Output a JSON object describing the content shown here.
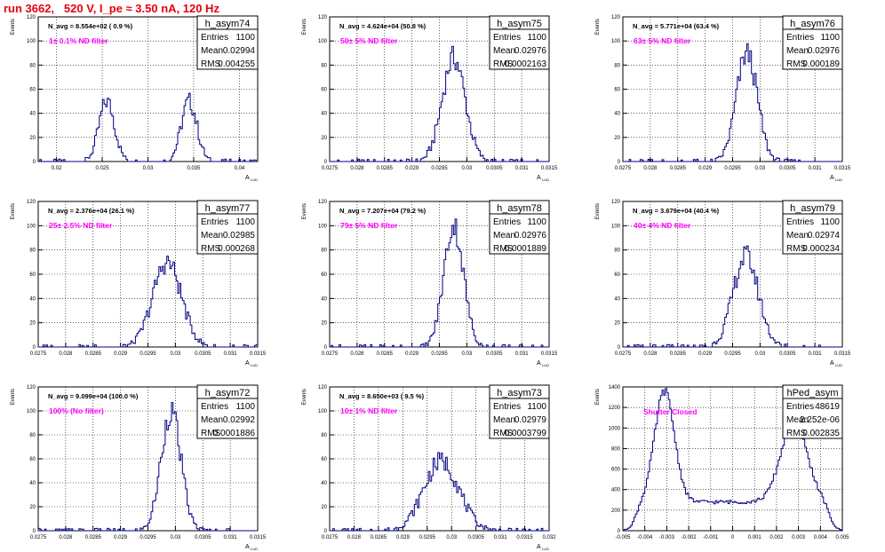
{
  "header": {
    "title": "run 3662,   520 V, I_pe ≈ 3.50 nA, 120 Hz",
    "title_color": "#e8000b"
  },
  "colors": {
    "histogram_line": "#000080",
    "filter_label": "#ff00ff",
    "grid": "#000000"
  },
  "chart_data": [
    {
      "type": "histogram",
      "name": "h_asym74",
      "navg": "N_avg = 8.554e+02 ( 0.9 %)",
      "filter": "1± 0.1% ND filter",
      "stats": {
        "Entries": "1100",
        "Mean": "0.02994",
        "RMS": "0.004255"
      },
      "ylabel": "Events",
      "xlabel": "A",
      "xlim": [
        0.018,
        0.042
      ],
      "ylim": [
        0,
        120
      ],
      "xticks": [
        "0.02",
        "0.025",
        "0.03",
        "0.035",
        "0.04"
      ],
      "xtick_values": [
        0.02,
        0.025,
        0.03,
        0.035,
        0.04
      ],
      "yticks": [
        0,
        20,
        40,
        60,
        80,
        100,
        120
      ],
      "peaks": [
        [
          0.0255,
          0.00085,
          50
        ],
        [
          0.0345,
          0.00085,
          50
        ]
      ]
    },
    {
      "type": "histogram",
      "name": "h_asym75",
      "navg": "N_avg = 4.624e+04 (50.8 %)",
      "filter": "50± 5% ND filter",
      "stats": {
        "Entries": "1100",
        "Mean": "0.02976",
        "RMS": "0.0002163"
      },
      "ylabel": "Events",
      "xlabel": "A",
      "xlim": [
        0.0275,
        0.0315
      ],
      "ylim": [
        0,
        120
      ],
      "xticks": [
        "0.0275",
        "0.028",
        "0.0285",
        "0.029",
        "0.0295",
        "0.03",
        "0.0305",
        "0.031",
        "0.0315"
      ],
      "xtick_values": [
        0.0275,
        0.028,
        0.0285,
        0.029,
        0.0295,
        0.03,
        0.0305,
        0.031,
        0.0315
      ],
      "yticks": [
        0,
        20,
        40,
        60,
        80,
        100,
        120
      ],
      "peaks": [
        [
          0.02976,
          0.00021,
          86
        ]
      ]
    },
    {
      "type": "histogram",
      "name": "h_asym76",
      "navg": "N_avg = 5.771e+04 (63.4 %)",
      "filter": "63± 5% ND filter",
      "stats": {
        "Entries": "1100",
        "Mean": "0.02976",
        "RMS": "0.000189"
      },
      "ylabel": "Events",
      "xlabel": "A",
      "xlim": [
        0.0275,
        0.0315
      ],
      "ylim": [
        0,
        120
      ],
      "xticks": [
        "0.0275",
        "0.028",
        "0.0285",
        "0.029",
        "0.0295",
        "0.03",
        "0.0305",
        "0.031",
        "0.0315"
      ],
      "xtick_values": [
        0.0275,
        0.028,
        0.0285,
        0.029,
        0.0295,
        0.03,
        0.0305,
        0.031,
        0.0315
      ],
      "yticks": [
        0,
        20,
        40,
        60,
        80,
        100,
        120
      ],
      "peaks": [
        [
          0.02976,
          0.00019,
          90
        ]
      ]
    },
    {
      "type": "histogram",
      "name": "h_asym77",
      "navg": "N_avg = 2.376e+04 (26.1 %)",
      "filter": "25± 2.5% ND filter",
      "stats": {
        "Entries": "1100",
        "Mean": "0.02985",
        "RMS": "0.000268"
      },
      "ylabel": "Events",
      "xlabel": "A",
      "xlim": [
        0.0275,
        0.0315
      ],
      "ylim": [
        0,
        120
      ],
      "xticks": [
        "0.0275",
        "0.028",
        "0.0285",
        "0.029",
        "0.0295",
        "0.03",
        "0.0305",
        "0.031",
        "0.0315"
      ],
      "xtick_values": [
        0.0275,
        0.028,
        0.0285,
        0.029,
        0.0295,
        0.03,
        0.0305,
        0.031,
        0.0315
      ],
      "yticks": [
        0,
        20,
        40,
        60,
        80,
        100,
        120
      ],
      "peaks": [
        [
          0.02985,
          0.00026,
          70
        ]
      ]
    },
    {
      "type": "histogram",
      "name": "h_asym78",
      "navg": "N_avg = 7.207e+04 (79.2 %)",
      "filter": "79± 5% ND filter",
      "stats": {
        "Entries": "1100",
        "Mean": "0.02976",
        "RMS": "0.0001889"
      },
      "ylabel": "Events",
      "xlabel": "A",
      "xlim": [
        0.0275,
        0.0315
      ],
      "ylim": [
        0,
        120
      ],
      "xticks": [
        "0.0275",
        "0.028",
        "0.0285",
        "0.029",
        "0.0295",
        "0.03",
        "0.0305",
        "0.031",
        "0.0315"
      ],
      "xtick_values": [
        0.0275,
        0.028,
        0.0285,
        0.029,
        0.0295,
        0.03,
        0.0305,
        0.031,
        0.0315
      ],
      "yticks": [
        0,
        20,
        40,
        60,
        80,
        100,
        120
      ],
      "peaks": [
        [
          0.02976,
          0.00018,
          100
        ]
      ]
    },
    {
      "type": "histogram",
      "name": "h_asym79",
      "navg": "N_avg = 3.679e+04 (40.4 %)",
      "filter": "40± 4% ND filter",
      "stats": {
        "Entries": "1100",
        "Mean": "0.02974",
        "RMS": "0.000234"
      },
      "ylabel": "Events",
      "xlabel": "A",
      "xlim": [
        0.0275,
        0.0315
      ],
      "ylim": [
        0,
        120
      ],
      "xticks": [
        "0.0275",
        "0.028",
        "0.0285",
        "0.029",
        "0.0295",
        "0.03",
        "0.0305",
        "0.031",
        "0.0315"
      ],
      "xtick_values": [
        0.0275,
        0.028,
        0.0285,
        0.029,
        0.0295,
        0.03,
        0.0305,
        0.031,
        0.0315
      ],
      "yticks": [
        0,
        20,
        40,
        60,
        80,
        100,
        120
      ],
      "peaks": [
        [
          0.02974,
          0.00023,
          75
        ]
      ]
    },
    {
      "type": "histogram",
      "name": "h_asym72",
      "navg": "N_avg = 9.099e+04 (100.0 %)",
      "filter": "100% (No filter)",
      "stats": {
        "Entries": "1100",
        "Mean": "0.02992",
        "RMS": "0.0001886"
      },
      "ylabel": "Events",
      "xlabel": "A",
      "xlim": [
        0.0275,
        0.0315
      ],
      "ylim": [
        0,
        120
      ],
      "xticks": [
        "0.0275",
        "0.028",
        "0.0285",
        "0.029",
        "0.0295",
        "0.03",
        "0.0305",
        "0.031",
        "0.0315"
      ],
      "xtick_values": [
        0.0275,
        0.028,
        0.0285,
        0.029,
        0.0295,
        0.03,
        0.0305,
        0.031,
        0.0315
      ],
      "yticks": [
        0,
        20,
        40,
        60,
        80,
        100,
        120
      ],
      "peaks": [
        [
          0.02992,
          0.00018,
          100
        ]
      ]
    },
    {
      "type": "histogram",
      "name": "h_asym73",
      "navg": "N_avg = 8.650e+03 ( 9.5 %)",
      "filter": "10± 1% ND filter",
      "stats": {
        "Entries": "1100",
        "Mean": "0.02979",
        "RMS": "0.0003799"
      },
      "ylabel": "Events",
      "xlabel": "A",
      "xlim": [
        0.0275,
        0.032
      ],
      "ylim": [
        0,
        120
      ],
      "xticks": [
        "0.0275",
        "0.028",
        "0.0285",
        "0.029",
        "0.0295",
        "0.03",
        "0.0305",
        "0.031",
        "0.0315",
        "0.032"
      ],
      "xtick_values": [
        0.0275,
        0.028,
        0.0285,
        0.029,
        0.0295,
        0.03,
        0.0305,
        0.031,
        0.0315,
        0.032
      ],
      "yticks": [
        0,
        20,
        40,
        60,
        80,
        100,
        120
      ],
      "peaks": [
        [
          0.02979,
          0.00036,
          58
        ]
      ]
    },
    {
      "type": "histogram",
      "name": "hPed_asym",
      "navg": "",
      "filter": "Shutter Closed",
      "stats": {
        "Entries": "48619",
        "Mean": "2.252e-06",
        "RMS": "0.002835"
      },
      "ylabel": "Events",
      "xlabel": "",
      "xlim": [
        -0.005,
        0.005
      ],
      "ylim": [
        0,
        1400
      ],
      "xticks": [
        "-0.005",
        "-0.004",
        "-0.003",
        "-0.002",
        "-0.001",
        "0",
        "0.001",
        "0.002",
        "0.003",
        "0.004",
        "0.005"
      ],
      "xtick_values": [
        -0.005,
        -0.004,
        -0.003,
        -0.002,
        -0.001,
        0,
        0.001,
        0.002,
        0.003,
        0.004,
        0.005
      ],
      "yticks": [
        0,
        200,
        400,
        600,
        800,
        1000,
        1200,
        1400
      ],
      "baseline": 280,
      "peaks": [
        [
          -0.0031,
          0.00045,
          1080
        ],
        [
          0.0028,
          0.0006,
          780
        ]
      ]
    }
  ]
}
